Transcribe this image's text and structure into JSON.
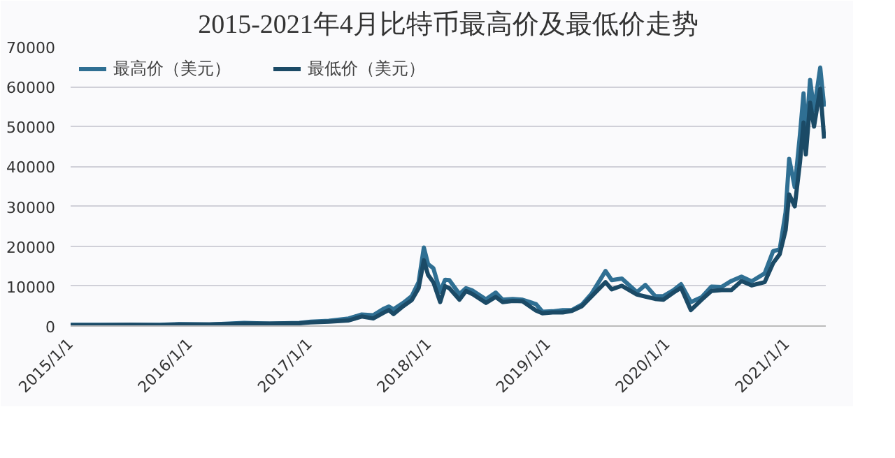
{
  "chart_data": {
    "type": "line",
    "title": "2015-2021年4月比特币最高价及最低价走势",
    "x": [
      "2015-01-01",
      "2015-04-01",
      "2015-07-01",
      "2015-10-01",
      "2015-12-01",
      "2016-03-01",
      "2016-06-15",
      "2016-09-01",
      "2016-12-01",
      "2017-01-05",
      "2017-03-01",
      "2017-05-01",
      "2017-06-10",
      "2017-07-15",
      "2017-08-15",
      "2017-09-01",
      "2017-09-15",
      "2017-10-15",
      "2017-11-10",
      "2017-12-01",
      "2017-12-17",
      "2017-12-30",
      "2018-01-15",
      "2018-02-05",
      "2018-02-20",
      "2018-03-05",
      "2018-04-05",
      "2018-04-25",
      "2018-05-15",
      "2018-06-25",
      "2018-07-25",
      "2018-08-15",
      "2018-09-15",
      "2018-10-15",
      "2018-11-25",
      "2018-12-15",
      "2019-01-15",
      "2019-02-15",
      "2019-03-15",
      "2019-04-15",
      "2019-05-15",
      "2019-06-26",
      "2019-07-15",
      "2019-08-15",
      "2019-09-30",
      "2019-10-26",
      "2019-11-25",
      "2019-12-20",
      "2020-01-20",
      "2020-02-12",
      "2020-03-13",
      "2020-04-15",
      "2020-05-15",
      "2020-06-15",
      "2020-07-15",
      "2020-08-15",
      "2020-09-15",
      "2020-10-25",
      "2020-11-20",
      "2020-12-10",
      "2020-12-28",
      "2021-01-08",
      "2021-01-25",
      "2021-02-10",
      "2021-02-21",
      "2021-02-28",
      "2021-03-13",
      "2021-03-25",
      "2021-04-13",
      "2021-04-25"
    ],
    "series": [
      {
        "name": "最高价（美元）",
        "color": "#2f6f93",
        "values": [
          300,
          300,
          300,
          300,
          500,
          400,
          800,
          600,
          800,
          1100,
          1300,
          1900,
          2900,
          2700,
          4300,
          4900,
          4200,
          5800,
          7500,
          11000,
          19700,
          15500,
          14500,
          8600,
          11600,
          11500,
          8000,
          9500,
          8900,
          6700,
          8400,
          6600,
          6800,
          6600,
          5500,
          3600,
          3700,
          4000,
          4000,
          5400,
          8200,
          13800,
          11500,
          11900,
          8500,
          10300,
          7500,
          7500,
          9000,
          10500,
          6000,
          7200,
          9900,
          9800,
          11300,
          12400,
          11200,
          13200,
          18800,
          19200,
          28500,
          41900,
          34800,
          48000,
          58300,
          46900,
          61700,
          54000,
          64800,
          55000
        ]
      },
      {
        "name": "最低价（美元）",
        "color": "#1b4a66",
        "values": [
          200,
          200,
          300,
          200,
          400,
          400,
          600,
          600,
          700,
          900,
          1100,
          1400,
          2400,
          1900,
          3300,
          4000,
          3000,
          5000,
          6500,
          9500,
          16500,
          12800,
          11000,
          6000,
          10000,
          9500,
          6600,
          8800,
          8000,
          5800,
          7300,
          6000,
          6300,
          6200,
          3900,
          3200,
          3400,
          3400,
          3800,
          5000,
          7500,
          11000,
          9200,
          10100,
          7900,
          7400,
          6800,
          6600,
          8400,
          9600,
          4000,
          6600,
          8800,
          9000,
          9000,
          11300,
          10200,
          11000,
          15800,
          18000,
          24000,
          33000,
          30000,
          41000,
          51000,
          43000,
          56000,
          50000,
          59500,
          47000
        ]
      }
    ],
    "xlim": [
      "2015-01-01",
      "2021-04-30"
    ],
    "xticks": [
      {
        "value": "2015-01-01",
        "label": "2015/1/1"
      },
      {
        "value": "2016-01-01",
        "label": "2016/1/1"
      },
      {
        "value": "2017-01-01",
        "label": "2017/1/1"
      },
      {
        "value": "2018-01-01",
        "label": "2018/1/1"
      },
      {
        "value": "2019-01-01",
        "label": "2019/1/1"
      },
      {
        "value": "2020-01-01",
        "label": "2020/1/1"
      },
      {
        "value": "2021-01-01",
        "label": "2021/1/1"
      }
    ],
    "ylim": [
      0,
      70000
    ],
    "yticks": [
      0,
      10000,
      20000,
      30000,
      40000,
      50000,
      60000,
      70000
    ],
    "grid": "y",
    "legend": "top left",
    "line_style": "solid",
    "marker": "none"
  }
}
